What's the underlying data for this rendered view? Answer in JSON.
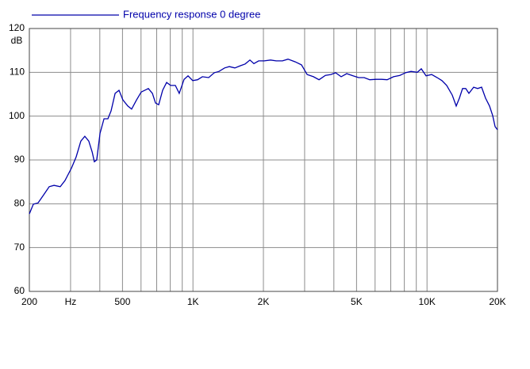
{
  "chart_data": {
    "type": "line",
    "y_label": "dB",
    "xscale": "log",
    "grid": true,
    "legend": "top-left",
    "xlim": [
      200,
      20000
    ],
    "ylim": [
      60,
      120
    ],
    "yticks": [
      60,
      70,
      80,
      90,
      100,
      110,
      120
    ],
    "xticks": [
      200,
      {
        "value": 300,
        "label": "Hz"
      },
      500,
      {
        "value": 1000,
        "label": "1K"
      },
      {
        "value": 2000,
        "label": "2K"
      },
      {
        "value": 5000,
        "label": "5K"
      },
      {
        "value": 10000,
        "label": "10K"
      },
      {
        "value": 20000,
        "label": "20K"
      }
    ],
    "xminorticks": [
      400,
      600,
      700,
      800,
      900,
      3000,
      4000,
      6000,
      7000,
      8000,
      9000
    ],
    "x": [
      200,
      208,
      218,
      230,
      243,
      255,
      271,
      284,
      303,
      317,
      332,
      345,
      359,
      371,
      379,
      388,
      401,
      417,
      433,
      447,
      465,
      483,
      502,
      527,
      547,
      574,
      601,
      645,
      671,
      692,
      714,
      742,
      772,
      803,
      841,
      874,
      916,
      953,
      998,
      1046,
      1097,
      1167,
      1233,
      1292,
      1365,
      1430,
      1510,
      1595,
      1671,
      1752,
      1821,
      1909,
      2016,
      2146,
      2267,
      2412,
      2548,
      2734,
      2910,
      3074,
      3272,
      3456,
      3678,
      3884,
      4070,
      4298,
      4540,
      4832,
      5104,
      5390,
      5694,
      6058,
      6400,
      6760,
      7194,
      7658,
      8090,
      8544,
      9092,
      9456,
      9910,
      10464,
      11054,
      11582,
      12136,
      12822,
      13330,
      13754,
      14188,
      14638,
      15102,
      15824,
      16456,
      17110,
      17794,
      18498,
      19086,
      19536,
      20000
    ],
    "series": [
      {
        "name": "Frequency response 0 degree",
        "color": "#0000aa",
        "values": [
          77.7,
          79.9,
          80.2,
          82,
          83.9,
          84.2,
          83.9,
          85.3,
          88.2,
          90.7,
          94.3,
          95.4,
          94.3,
          91.8,
          89.6,
          90,
          96.1,
          99.4,
          99.4,
          101.2,
          105.2,
          105.9,
          103.7,
          102.3,
          101.6,
          103.7,
          105.5,
          106.3,
          105.2,
          103,
          102.6,
          105.9,
          107.7,
          107,
          107,
          105.2,
          108.4,
          109.2,
          108.1,
          108.3,
          109,
          108.8,
          109.9,
          110.2,
          111,
          111.3,
          111,
          111.5,
          111.9,
          112.8,
          112,
          112.6,
          112.6,
          112.8,
          112.6,
          112.6,
          113,
          112.4,
          111.7,
          109.5,
          109,
          108.3,
          109.3,
          109.5,
          109.9,
          109,
          109.7,
          109.2,
          108.8,
          108.8,
          108.3,
          108.4,
          108.4,
          108.3,
          109,
          109.3,
          109.9,
          110.2,
          110,
          110.8,
          109.2,
          109.5,
          108.8,
          108.1,
          107,
          104.8,
          102.3,
          104.1,
          106.3,
          106.3,
          105.2,
          106.6,
          106.3,
          106.6,
          104.1,
          102.3,
          100.1,
          97.6,
          96.9
        ]
      }
    ]
  }
}
